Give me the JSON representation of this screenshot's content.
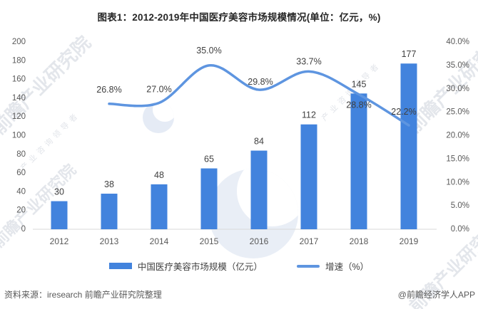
{
  "title": "图表1：2012-2019年中国医疗美容市场规模情况(单位：亿元，%)",
  "chart_data": {
    "type": "combo-bar-line",
    "categories": [
      "2012",
      "2013",
      "2014",
      "2015",
      "2016",
      "2017",
      "2018",
      "2019"
    ],
    "series": [
      {
        "name": "中国医疗美容市场规模（亿元）",
        "type": "bar",
        "axis": "left",
        "color": "#4283dd",
        "values": [
          30,
          38,
          48,
          65,
          84,
          112,
          145,
          177
        ],
        "labels": [
          "30",
          "38",
          "48",
          "65",
          "84",
          "112",
          "145",
          "177"
        ]
      },
      {
        "name": "增速（%）",
        "type": "line",
        "axis": "right",
        "color": "#5e95e0",
        "values": [
          null,
          26.8,
          27.0,
          35.0,
          29.8,
          33.7,
          28.8,
          22.2
        ],
        "labels": [
          null,
          "26.8%",
          "27.0%",
          "35.0%",
          "29.8%",
          "33.7%",
          "28.8%",
          "22.2%"
        ]
      }
    ],
    "left_axis": {
      "min": 0,
      "max": 200,
      "step": 20,
      "tick_labels": [
        "0",
        "20",
        "40",
        "60",
        "80",
        "100",
        "120",
        "140",
        "160",
        "180",
        "200"
      ]
    },
    "right_axis": {
      "min": 0,
      "max": 40,
      "step": 5,
      "tick_labels": [
        "0.0%",
        "5.0%",
        "10.0%",
        "15.0%",
        "20.0%",
        "25.0%",
        "30.0%",
        "35.0%",
        "40.0%"
      ]
    },
    "grid": false,
    "legend_position": "bottom"
  },
  "legend": {
    "items": [
      {
        "label": "中国医疗美容市场规模（亿元）",
        "swatch": "bar",
        "color": "#4283dd"
      },
      {
        "label": "增速（%）",
        "swatch": "line",
        "color": "#5e95e0"
      }
    ]
  },
  "footer": {
    "source": "资料来源：iresearch 前瞻产业研究院整理",
    "credit": "@前瞻经济学人APP"
  },
  "watermarks": {
    "brand": "前瞻产业研究院",
    "tagline": "产业咨询领导者"
  },
  "colors": {
    "bar": "#4283dd",
    "line": "#5e95e0",
    "axis_text": "#595959",
    "value_text": "#404040",
    "baseline": "#d9d9d9",
    "title_text": "#262626"
  }
}
